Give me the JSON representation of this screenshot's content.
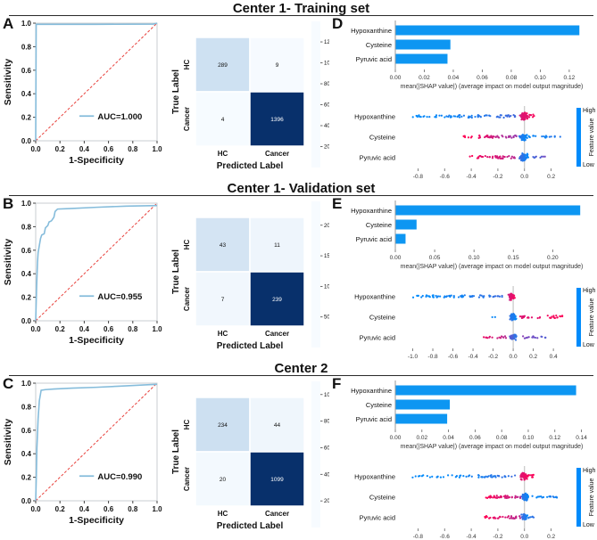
{
  "colors": {
    "bar_blue": "#0d96f2",
    "roc_curve": "#85bcdb",
    "diagonal_red": "#e8413c",
    "shap_low": "#008bfb",
    "shap_mid": "#8b41b8",
    "shap_high": "#ff0255",
    "cm_stops": [
      [
        0,
        "#f7fbff"
      ],
      [
        0.25,
        "#c6dbef"
      ],
      [
        0.5,
        "#6baed6"
      ],
      [
        0.75,
        "#2171b5"
      ],
      [
        1,
        "#08306b"
      ]
    ]
  },
  "chart_data": {
    "rows": [
      {
        "title": "Center 1- Training set",
        "roc": {
          "type": "line",
          "panel_label": "A",
          "xlabel": "1-Specificity",
          "ylabel": "Sensitivity",
          "ticks": [
            0,
            0.2,
            0.4,
            0.6,
            0.8,
            1.0
          ],
          "xlim": [
            0,
            1
          ],
          "ylim": [
            0,
            1
          ],
          "auc_label": "AUC=1.000",
          "curve": [
            [
              0,
              0
            ],
            [
              0.004,
              0.99
            ],
            [
              0.5,
              0.99
            ],
            [
              0.97,
              0.992
            ],
            [
              1,
              1
            ]
          ]
        },
        "confusion": {
          "type": "heatmap",
          "xlabel": "Predicted Label",
          "ylabel": "True Label",
          "x_categories": [
            "HC",
            "Cancer"
          ],
          "y_categories": [
            "HC",
            "Cancer"
          ],
          "values": [
            [
              289,
              9
            ],
            [
              4,
              1396
            ]
          ],
          "colorbar_ticks": [
            1200,
            1000,
            800,
            600,
            400,
            200
          ]
        },
        "bar": {
          "type": "bar",
          "panel_label": "D",
          "features": [
            "Hypoxanthine",
            "Cysteine",
            "Pyruvic acid"
          ],
          "values": [
            0.127,
            0.038,
            0.036
          ],
          "xticks": [
            0,
            0.02,
            0.04,
            0.06,
            0.08,
            0.1,
            0.12
          ],
          "xlim": [
            0,
            0.133
          ],
          "xlabel": "mean(|SHAP value|) (average impact on model output magnitude)"
        },
        "beeswarm": {
          "type": "scatter",
          "xlabel": "SHAP value (impact on model output)",
          "xticks": [
            -0.8,
            -0.6,
            -0.4,
            -0.2,
            0,
            0.2
          ],
          "xlim": [
            -0.93,
            0.33
          ],
          "colorbar": {
            "high": "High",
            "low": "Low",
            "label": "Feature value"
          },
          "features": [
            "Hypoxanthine",
            "Cysteine",
            "Pyruvic acid"
          ],
          "bands": [
            [
              [
                -0.85,
                -0.55,
                25,
                0,
                0.05,
                1.2
              ],
              [
                -0.55,
                -0.05,
                45,
                0.05,
                0.25,
                1.5
              ],
              [
                -0.04,
                0.03,
                70,
                0.75,
                1,
                5
              ],
              [
                0,
                0.08,
                20,
                0.85,
                1,
                2.5
              ]
            ],
            [
              [
                -0.46,
                -0.36,
                7,
                1,
                1,
                1
              ],
              [
                -0.36,
                -0.06,
                40,
                0.95,
                0.55,
                1.5
              ],
              [
                -0.05,
                0.03,
                70,
                0.15,
                0,
                5
              ],
              [
                0.03,
                0.27,
                18,
                0,
                0.15,
                1.2
              ]
            ],
            [
              [
                -0.42,
                -0.06,
                40,
                1,
                0.7,
                1.5
              ],
              [
                -0.05,
                0.03,
                65,
                0.25,
                0,
                4.5
              ],
              [
                0.04,
                0.16,
                8,
                0.2,
                0.4,
                1
              ]
            ]
          ]
        }
      },
      {
        "title": "Center 1- Validation set",
        "roc": {
          "type": "line",
          "panel_label": "B",
          "xlabel": "1-Specificity",
          "ylabel": "Sensitivity",
          "ticks": [
            0,
            0.2,
            0.4,
            0.6,
            0.8,
            1.0
          ],
          "xlim": [
            0,
            1
          ],
          "ylim": [
            0,
            1
          ],
          "auc_label": "AUC=0.955",
          "curve": [
            [
              0,
              0
            ],
            [
              0.008,
              0.3
            ],
            [
              0.015,
              0.5
            ],
            [
              0.02,
              0.58
            ],
            [
              0.03,
              0.64
            ],
            [
              0.04,
              0.7
            ],
            [
              0.05,
              0.73
            ],
            [
              0.07,
              0.74
            ],
            [
              0.08,
              0.79
            ],
            [
              0.1,
              0.81
            ],
            [
              0.11,
              0.84
            ],
            [
              0.13,
              0.85
            ],
            [
              0.15,
              0.88
            ],
            [
              0.16,
              0.93
            ],
            [
              0.18,
              0.95
            ],
            [
              0.3,
              0.955
            ],
            [
              0.5,
              0.965
            ],
            [
              0.75,
              0.975
            ],
            [
              1,
              0.98
            ]
          ]
        },
        "confusion": {
          "type": "heatmap",
          "xlabel": "Predicted Label",
          "ylabel": "True Label",
          "x_categories": [
            "HC",
            "Cancer"
          ],
          "y_categories": [
            "HC",
            "Cancer"
          ],
          "values": [
            [
              43,
              11
            ],
            [
              7,
              239
            ]
          ],
          "colorbar_ticks": [
            200,
            150,
            100,
            50
          ]
        },
        "bar": {
          "type": "bar",
          "panel_label": "E",
          "features": [
            "Hypoxanthine",
            "Cysteine",
            "Pyruvic acid"
          ],
          "values": [
            0.235,
            0.027,
            0.013
          ],
          "xticks": [
            0,
            0.05,
            0.1,
            0.15,
            0.2
          ],
          "xlim": [
            0,
            0.245
          ],
          "xlabel": "mean(|SHAP value|) (average impact on model output magnitude)"
        },
        "beeswarm": {
          "type": "scatter",
          "xlabel": "SHAP value (impact on model output)",
          "xticks": [
            -1.0,
            -0.8,
            -0.6,
            -0.4,
            -0.2,
            0,
            0.2,
            0.4
          ],
          "xlim": [
            -1.12,
            0.55
          ],
          "colorbar": {
            "high": "High",
            "low": "Low",
            "label": "Feature value"
          },
          "features": [
            "Hypoxanthine",
            "Cysteine",
            "Pyruvic acid"
          ],
          "bands": [
            [
              [
                -1.0,
                -0.6,
                30,
                0,
                0.05,
                1.3
              ],
              [
                -0.6,
                -0.08,
                35,
                0.05,
                0.2,
                1.3
              ],
              [
                -0.06,
                0.03,
                50,
                0.75,
                1,
                4.5
              ]
            ],
            [
              [
                -0.22,
                -0.18,
                2,
                0,
                0,
                0.8
              ],
              [
                -0.05,
                0.04,
                55,
                0.2,
                0,
                4.5
              ],
              [
                0.05,
                0.5,
                30,
                0.85,
                1,
                1.5
              ]
            ],
            [
              [
                -0.3,
                -0.05,
                15,
                0.9,
                0.7,
                1.3
              ],
              [
                -0.05,
                0.04,
                50,
                0.4,
                0.1,
                4
              ],
              [
                0.05,
                0.35,
                16,
                0.5,
                0.3,
                1.3
              ]
            ]
          ]
        }
      },
      {
        "title": "Center 2",
        "roc": {
          "type": "line",
          "panel_label": "C",
          "xlabel": "1-Specificity",
          "ylabel": "Sensitivity",
          "ticks": [
            0,
            0.2,
            0.4,
            0.6,
            0.8,
            1.0
          ],
          "xlim": [
            0,
            1
          ],
          "ylim": [
            0,
            1
          ],
          "auc_label": "AUC=0.990",
          "curve": [
            [
              0,
              0
            ],
            [
              0.005,
              0.2
            ],
            [
              0.01,
              0.45
            ],
            [
              0.02,
              0.7
            ],
            [
              0.03,
              0.85
            ],
            [
              0.045,
              0.94
            ],
            [
              0.08,
              0.945
            ],
            [
              0.15,
              0.95
            ],
            [
              0.3,
              0.958
            ],
            [
              0.5,
              0.965
            ],
            [
              0.7,
              0.975
            ],
            [
              0.9,
              0.985
            ],
            [
              1,
              0.99
            ]
          ]
        },
        "confusion": {
          "type": "heatmap",
          "xlabel": "Predicted Label",
          "ylabel": "True Label",
          "x_categories": [
            "HC",
            "Cancer"
          ],
          "y_categories": [
            "HC",
            "Cancer"
          ],
          "values": [
            [
              234,
              44
            ],
            [
              20,
              1099
            ]
          ],
          "colorbar_ticks": [
            1000,
            800,
            600,
            400,
            200
          ]
        },
        "bar": {
          "type": "bar",
          "panel_label": "F",
          "features": [
            "Hypoxanthine",
            "Cysteine",
            "Pyruvic acid"
          ],
          "values": [
            0.136,
            0.041,
            0.039
          ],
          "xticks": [
            0,
            0.02,
            0.04,
            0.06,
            0.08,
            0.1,
            0.12,
            0.14
          ],
          "xlim": [
            0,
            0.145
          ],
          "xlabel": "mean(|SHAP value|) (average impact on model output magnitude)"
        },
        "beeswarm": {
          "type": "scatter",
          "xlabel": "SHAP value (impact on model output)",
          "xticks": [
            -0.8,
            -0.6,
            -0.4,
            -0.2,
            0,
            0.2
          ],
          "xlim": [
            -0.93,
            0.33
          ],
          "colorbar": {
            "high": "High",
            "low": "Low",
            "label": "Feature value"
          },
          "features": [
            "Hypoxanthine",
            "Cysteine",
            "Pyruvic acid"
          ],
          "bands": [
            [
              [
                -0.85,
                -0.4,
                25,
                0,
                0.05,
                1.3
              ],
              [
                -0.4,
                -0.06,
                30,
                0.05,
                0.2,
                1.4
              ],
              [
                -0.04,
                0.03,
                60,
                0.8,
                1,
                4.5
              ],
              [
                0.01,
                0.07,
                10,
                0.9,
                1,
                2
              ]
            ],
            [
              [
                -0.3,
                -0.03,
                40,
                1,
                0.7,
                1.5
              ],
              [
                -0.03,
                0.04,
                60,
                0.2,
                0,
                4.5
              ],
              [
                0.04,
                0.25,
                18,
                0,
                0.1,
                1.3
              ]
            ],
            [
              [
                -0.3,
                -0.03,
                35,
                1,
                0.7,
                1.4
              ],
              [
                -0.03,
                0.03,
                55,
                0.25,
                0,
                4
              ],
              [
                0.03,
                0.1,
                6,
                0.1,
                0.2,
                1
              ]
            ]
          ]
        }
      }
    ]
  }
}
